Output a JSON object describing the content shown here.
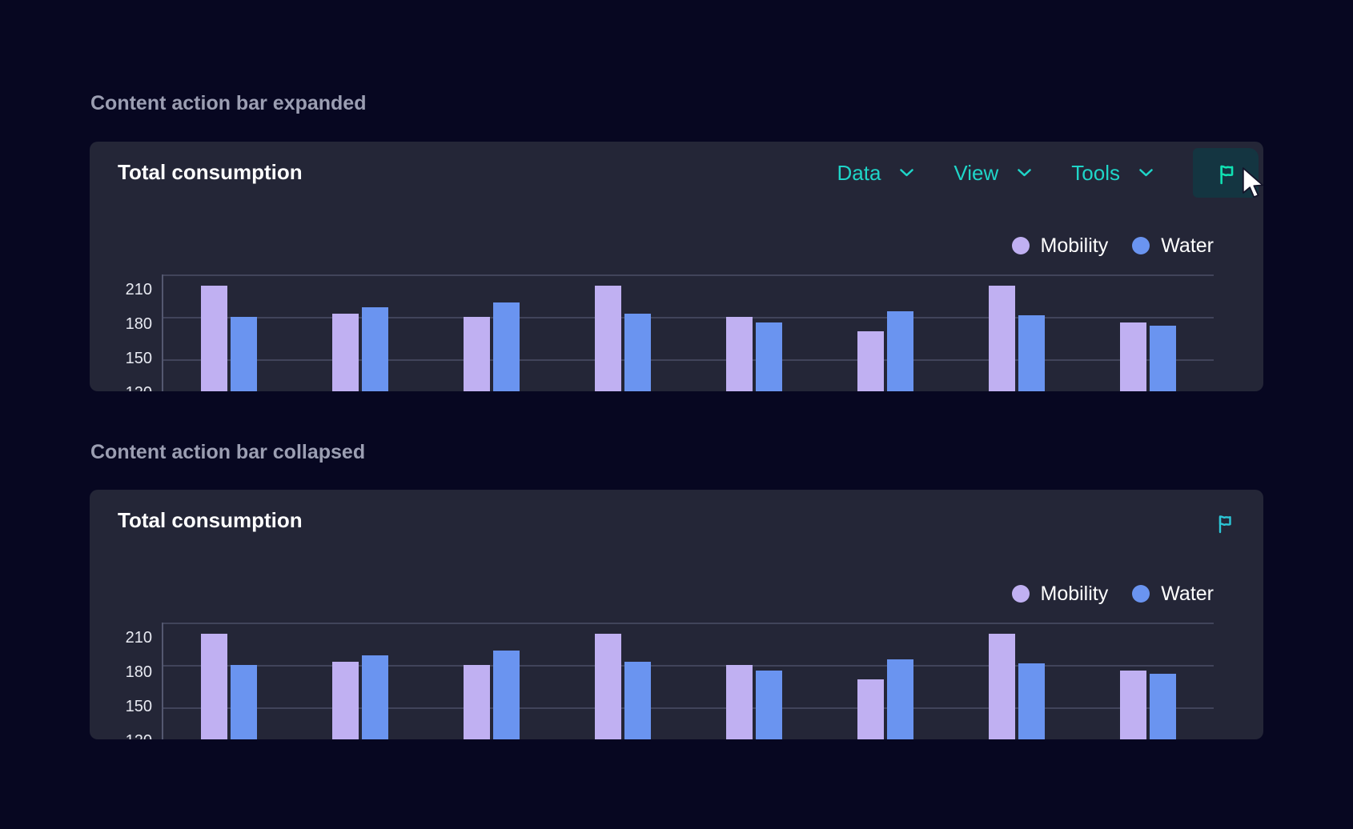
{
  "page": {
    "heading_expanded": "Content action bar expanded",
    "heading_collapsed": "Content action bar collapsed"
  },
  "card": {
    "title": "Total consumption",
    "action_bar": {
      "menus": [
        {
          "label": "Data"
        },
        {
          "label": "View"
        },
        {
          "label": "Tools"
        }
      ],
      "flag_button_icon": "flag-icon",
      "flag_button_state": "active"
    },
    "legend": [
      {
        "label": "Mobility",
        "color": "#c0b0f2"
      },
      {
        "label": "Water",
        "color": "#6a94f0"
      }
    ]
  },
  "chart_data": {
    "type": "bar",
    "title": "Total consumption",
    "categories": null,
    "series": [
      {
        "name": "Mobility",
        "color": "#c0b0f2",
        "values": [
          202,
          182,
          180,
          202,
          180,
          170,
          202,
          176
        ]
      },
      {
        "name": "Water",
        "color": "#6a94f0",
        "values": [
          180,
          187,
          190,
          182,
          176,
          184,
          181,
          174
        ]
      }
    ],
    "y_ticks": [
      210,
      180,
      150,
      120
    ],
    "ylim": [
      120,
      222
    ],
    "grid": true,
    "legend_position": "top-right",
    "note": "chart bottom and x-axis labels are clipped by the card edge; the 120 tick is partially visible"
  },
  "colors": {
    "page_bg": "#070721",
    "card_bg": "#242637",
    "gridline": "#41445a",
    "axis_line": "#545870",
    "heading_text": "#9b9eb2",
    "title_text": "#ffffff",
    "axis_label_text": "#e8eaf2",
    "menu_teal": "#1fd5c8",
    "flag_active_teal": "#10e2b3",
    "flag_collapsed_teal": "#2cc6d6",
    "flag_button_bg": "#143541",
    "mobility_bar": "#c0b0f2",
    "water_bar": "#6a94f0"
  }
}
